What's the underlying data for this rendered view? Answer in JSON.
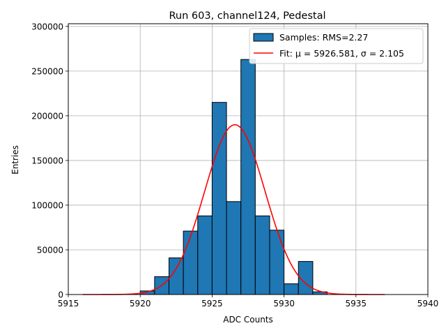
{
  "chart_data": {
    "type": "bar",
    "title": "Run 603, channel124, Pedestal",
    "xlabel": "ADC Counts",
    "ylabel": "Entries",
    "xlim": [
      5915,
      5940
    ],
    "ylim": [
      0,
      303000
    ],
    "xticks": [
      5915,
      5920,
      5925,
      5930,
      5935,
      5940
    ],
    "yticks": [
      0,
      50000,
      100000,
      150000,
      200000,
      250000,
      300000
    ],
    "grid": true,
    "legend_position": "top-right",
    "bin_width": 1,
    "series": [
      {
        "name": "Samples: RMS=2.27",
        "kind": "histogram",
        "color": "#1f77b4",
        "edge_color": "#000000",
        "bins": [
          {
            "x": 5920,
            "value": 4000
          },
          {
            "x": 5921,
            "value": 20000
          },
          {
            "x": 5922,
            "value": 41000
          },
          {
            "x": 5923,
            "value": 71000
          },
          {
            "x": 5924,
            "value": 88000
          },
          {
            "x": 5925,
            "value": 215000
          },
          {
            "x": 5926,
            "value": 104000
          },
          {
            "x": 5927,
            "value": 263000
          },
          {
            "x": 5928,
            "value": 88000
          },
          {
            "x": 5929,
            "value": 72000
          },
          {
            "x": 5930,
            "value": 12000
          },
          {
            "x": 5931,
            "value": 37000
          },
          {
            "x": 5932,
            "value": 3000
          }
        ]
      },
      {
        "name": "Fit: μ = 5926.581, σ = 2.105",
        "kind": "gaussian",
        "color": "#ff0000",
        "mu": 5926.581,
        "sigma": 2.105,
        "amplitude": 190000,
        "x_range": [
          5916,
          5937
        ]
      }
    ]
  }
}
